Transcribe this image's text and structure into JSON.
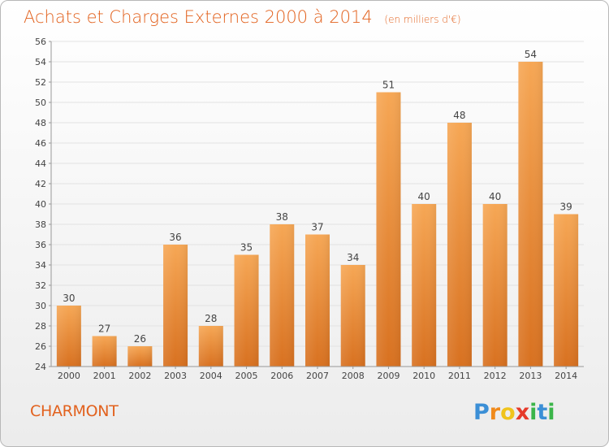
{
  "header": {
    "title": "Achats et Charges Externes 2000 à 2014",
    "subtitle": "(en milliers d'€)"
  },
  "footer": {
    "city": "CHARMONT",
    "logo_text": "Proxiti"
  },
  "colors": {
    "accent": "#e2611d",
    "bar_light": "#f6a755",
    "bar_dark": "#d87120",
    "logo_p": "#3b8fd6",
    "logo_r": "#f08a1c",
    "logo_o": "#f0c41c",
    "logo_x": "#e63a2a",
    "logo_i": "#3bb54a",
    "logo_t": "#3b8fd6"
  },
  "chart_data": {
    "type": "bar",
    "title": "Achats et Charges Externes 2000 à 2014",
    "subtitle": "(en milliers d'€)",
    "xlabel": "",
    "ylabel": "",
    "categories": [
      "2000",
      "2001",
      "2002",
      "2003",
      "2004",
      "2005",
      "2006",
      "2007",
      "2008",
      "2009",
      "2010",
      "2011",
      "2012",
      "2013",
      "2014"
    ],
    "values": [
      30,
      27,
      26,
      36,
      28,
      35,
      38,
      37,
      34,
      51,
      40,
      48,
      40,
      54,
      39
    ],
    "ylim": [
      24,
      56
    ],
    "yticks": [
      24,
      26,
      28,
      30,
      32,
      34,
      36,
      38,
      40,
      42,
      44,
      46,
      48,
      50,
      52,
      54,
      56
    ],
    "grid": true,
    "legend": "none"
  }
}
